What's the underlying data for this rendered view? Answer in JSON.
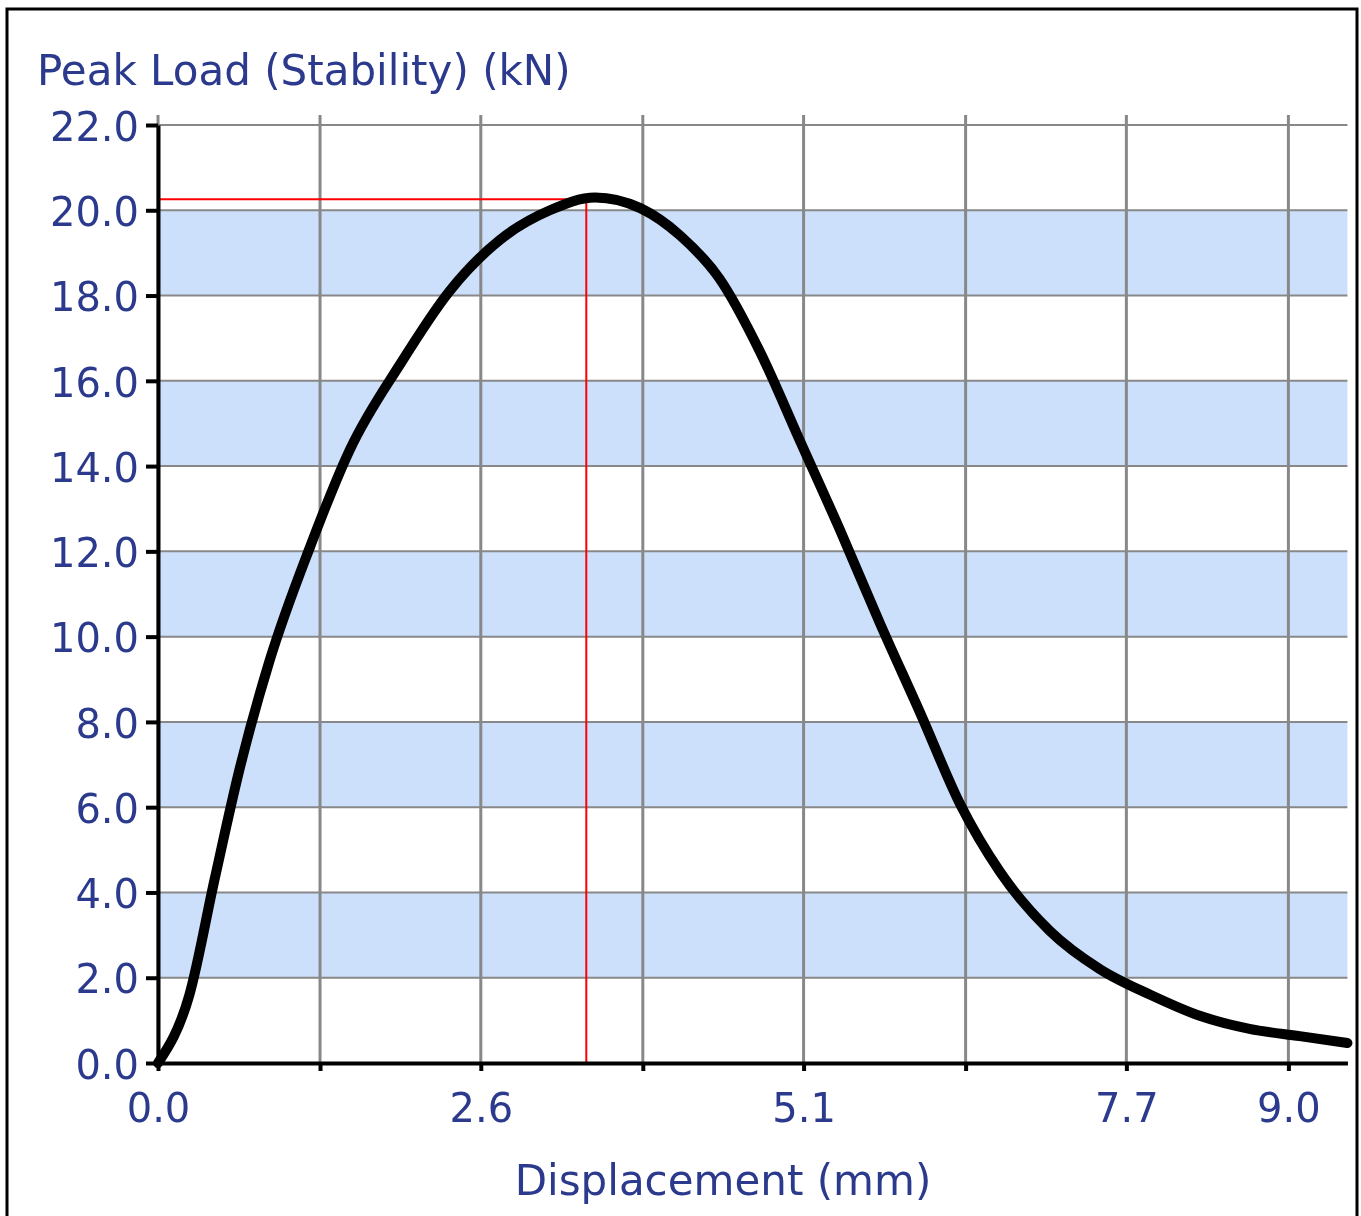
{
  "chart_data": {
    "type": "line",
    "title": "Peak Load (Stability) (kN)",
    "xlabel": "Displacement (mm)",
    "x": [
      0,
      0.25,
      0.45,
      0.65,
      0.89,
      1.21,
      1.53,
      1.93,
      2.32,
      2.72,
      3.12,
      3.48,
      3.84,
      4.16,
      4.47,
      4.79,
      5.11,
      5.43,
      5.75,
      6.07,
      6.39,
      6.7,
      7.1,
      7.5,
      7.9,
      8.3,
      8.69,
      9.09,
      9.47
    ],
    "series": [
      {
        "color": "#000000",
        "values": [
          0,
          1.6,
          4.3,
          6.9,
          9.45,
          12.1,
          14.4,
          16.4,
          18.1,
          19.3,
          20.0,
          20.3,
          20.05,
          19.4,
          18.4,
          16.7,
          14.6,
          12.5,
          10.3,
          8.2,
          6.05,
          4.5,
          3.1,
          2.2,
          1.6,
          1.1,
          0.8,
          0.63,
          0.47
        ]
      }
    ],
    "xlim": [
      0,
      9.47
    ],
    "xticks": [
      {
        "value": 0,
        "label": "0.0"
      },
      {
        "value": 1.29,
        "label": null
      },
      {
        "value": 2.57,
        "label": "2.6"
      },
      {
        "value": 3.86,
        "label": null
      },
      {
        "value": 5.14,
        "label": "5.1"
      },
      {
        "value": 6.43,
        "label": null
      },
      {
        "value": 7.71,
        "label": "7.7"
      },
      {
        "value": 9,
        "label": "9.0"
      }
    ],
    "ylim": [
      0,
      22
    ],
    "yticks": [
      {
        "value": 0,
        "label": "0.0"
      },
      {
        "value": 2,
        "label": "2.0"
      },
      {
        "value": 4,
        "label": "4.0"
      },
      {
        "value": 6,
        "label": "6.0"
      },
      {
        "value": 8,
        "label": "8.0"
      },
      {
        "value": 10,
        "label": "10.0"
      },
      {
        "value": 12,
        "label": "12.0"
      },
      {
        "value": 14,
        "label": "14.0"
      },
      {
        "value": 16,
        "label": "16.0"
      },
      {
        "value": 18,
        "label": "18.0"
      },
      {
        "value": 20,
        "label": "20.0"
      },
      {
        "value": 22,
        "label": "22.0"
      }
    ],
    "grid": true,
    "marker": "none",
    "line_style": "solid",
    "bands": [
      {
        "axis": "y",
        "from": 2,
        "to": 4,
        "color": "#cce0fc"
      },
      {
        "axis": "y",
        "from": 6,
        "to": 8,
        "color": "#cce0fc"
      },
      {
        "axis": "y",
        "from": 10,
        "to": 12,
        "color": "#cce0fc"
      },
      {
        "axis": "y",
        "from": 14,
        "to": 16,
        "color": "#cce0fc"
      },
      {
        "axis": "y",
        "from": 18,
        "to": 20,
        "color": "#cce0fc"
      }
    ],
    "ref_lines": [
      {
        "axis": "x",
        "value": 3.41,
        "color": "#ff0000"
      },
      {
        "axis": "y",
        "value": 20.26,
        "color": "#ff0000"
      }
    ]
  }
}
